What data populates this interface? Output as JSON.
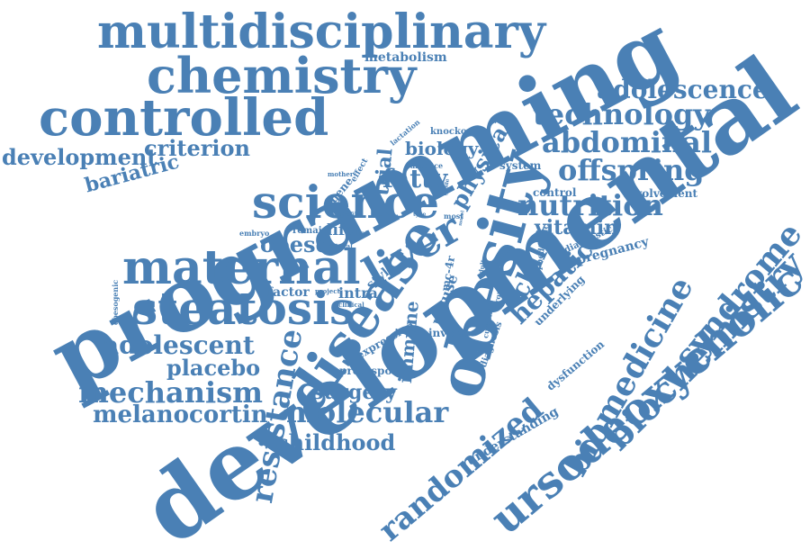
{
  "colors": {
    "word": "#4a80b5",
    "background": "#ffffff"
  },
  "words": {
    "multidisciplinary": "multidisciplinary",
    "chemistry": "chemistry",
    "metabolism": "metabolism",
    "controlled": "controlled",
    "adolescence": "adolescence",
    "technology": "technology",
    "development": "development",
    "criterion": "criterion",
    "bariatric": "bariatric",
    "abdominal": "abdominal",
    "offspring": "offspring",
    "programming": "programming",
    "science": "science",
    "nutrition": "nutrition",
    "fatty": "fatty",
    "biology": "biology",
    "trial": "trial",
    "physical": "physical",
    "lactation": "lactation",
    "knockout": "knockout",
    "absence": "absence",
    "system": "system",
    "control": "control",
    "involvement": "involvement",
    "mother": "mother",
    "effect": "effect",
    "gene": "gene",
    "profile": "profile",
    "type": "type",
    "most": "most",
    "guide": "guide",
    "model": "model",
    "embryo": "embryo",
    "diet": "diet",
    "life": "life",
    "remain": "remain",
    "natural": "natural",
    "obese": "obese",
    "liver": "liver",
    "vitamin": "vitamin",
    "diagnostic": "diagnostic",
    "pregnancy": "pregnancy",
    "maternal": "maternal",
    "obesity": "obesity",
    "hepatic": "hepatic",
    "child": "child",
    "paediatric": "paediatric",
    "steatosis": "steatosis",
    "factor": "factor",
    "project": "project",
    "intra": "intra",
    "clinical": "clinical",
    "style": "style",
    "obesogenic": "obesogenic",
    "disease": "disease",
    "mouse": "mouse",
    "mc4r": "mc-4r",
    "adult": "adult",
    "group": "group",
    "underlying": "underlying",
    "developmental": "developmental",
    "syndrome": "syndrome",
    "adolescent": "adolescent",
    "placebo": "placebo",
    "resistance": "resistance",
    "expression": "expression",
    "immune": "immune",
    "involve": "involve",
    "current": "current",
    "diagnosis": "diagnosis",
    "dysfunction": "dysfunction",
    "biomedicine": "biomedicine",
    "biochemistry": "biochemistry",
    "mechanism": "mechanism",
    "predispose": "predispose",
    "surgery": "surgery",
    "melanocortin": "melanocortin",
    "molecular": "molecular",
    "ursodeoxycholic": "ursodeoxycholic",
    "childhood": "childhood",
    "randomized": "randomized",
    "understanding": "understanding"
  }
}
